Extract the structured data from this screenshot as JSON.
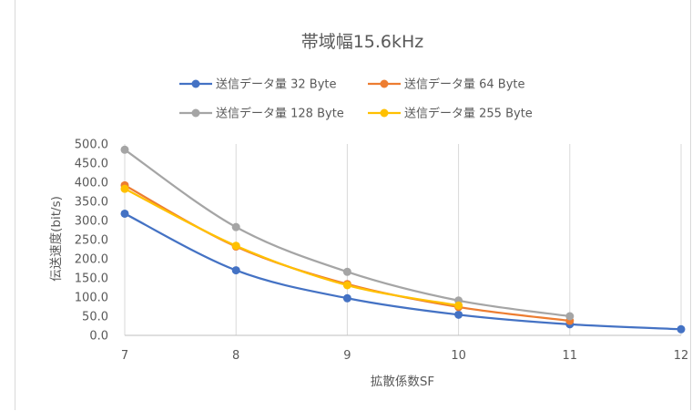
{
  "chart_data": {
    "type": "line",
    "title": "帯域幅15.6kHz",
    "xlabel": "拡散係数SF",
    "ylabel": "伝送速度(bit/s)",
    "x_ticks": [
      "7",
      "8",
      "9",
      "10",
      "11",
      "12"
    ],
    "y_ticks": [
      "0.0",
      "50.0",
      "100.0",
      "150.0",
      "200.0",
      "250.0",
      "300.0",
      "350.0",
      "400.0",
      "450.0",
      "500.0"
    ],
    "ylim": [
      0,
      500
    ],
    "xlim": [
      7,
      12
    ],
    "grid": "vertical",
    "legend_position": "top",
    "series": [
      {
        "name": "送信データ量 32 Byte",
        "color": "#4472C4",
        "x": [
          7,
          8,
          9,
          10,
          11,
          12
        ],
        "values": [
          318,
          170,
          97,
          54,
          29,
          16
        ]
      },
      {
        "name": "送信データ量 64 Byte",
        "color": "#ED7D31",
        "x": [
          7,
          8,
          9,
          10,
          11
        ],
        "values": [
          392,
          232,
          134,
          74,
          38
        ]
      },
      {
        "name": "送信データ量 128 Byte",
        "color": "#A5A5A5",
        "x": [
          7,
          8,
          9,
          10,
          11
        ],
        "values": [
          485,
          283,
          166,
          91,
          50
        ]
      },
      {
        "name": "送信データ量 255 Byte",
        "color": "#FFC000",
        "x": [
          7,
          8,
          9,
          10
        ],
        "values": [
          383,
          234,
          131,
          78
        ]
      }
    ]
  }
}
